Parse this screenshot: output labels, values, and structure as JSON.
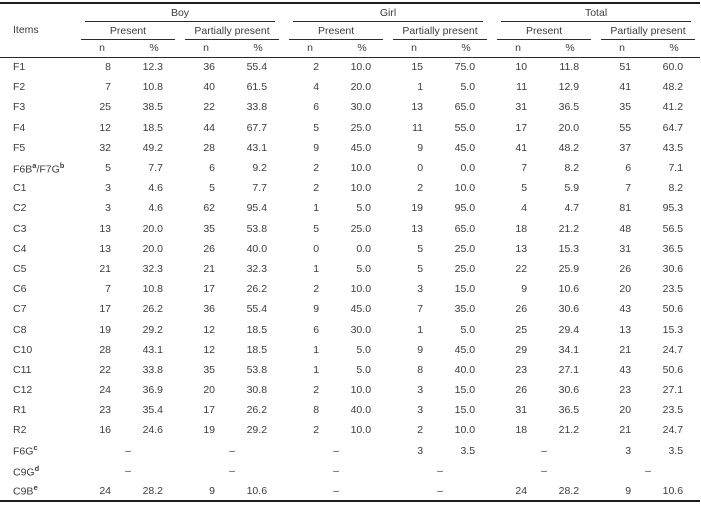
{
  "table": {
    "items_header": "Items",
    "dash": "–",
    "col_headers": [
      "n",
      "%"
    ],
    "groups": [
      {
        "label": "Boy",
        "subgroups": [
          "Present",
          "Partially present"
        ]
      },
      {
        "label": "Girl",
        "subgroups": [
          "Present",
          "Partially present"
        ]
      },
      {
        "label": "Total",
        "subgroups": [
          "Present",
          "Partially present"
        ]
      }
    ],
    "rows": [
      {
        "label": [
          [
            "t",
            "F1"
          ]
        ],
        "groups": [
          [
            "8",
            "12.3"
          ],
          [
            "36",
            "55.4"
          ],
          [
            "2",
            "10.0"
          ],
          [
            "15",
            "75.0"
          ],
          [
            "10",
            "11.8"
          ],
          [
            "51",
            "60.0"
          ]
        ]
      },
      {
        "label": [
          [
            "t",
            "F2"
          ]
        ],
        "groups": [
          [
            "7",
            "10.8"
          ],
          [
            "40",
            "61.5"
          ],
          [
            "4",
            "20.0"
          ],
          [
            "1",
            "5.0"
          ],
          [
            "11",
            "12.9"
          ],
          [
            "41",
            "48.2"
          ]
        ]
      },
      {
        "label": [
          [
            "t",
            "F3"
          ]
        ],
        "groups": [
          [
            "25",
            "38.5"
          ],
          [
            "22",
            "33.8"
          ],
          [
            "6",
            "30.0"
          ],
          [
            "13",
            "65.0"
          ],
          [
            "31",
            "36.5"
          ],
          [
            "35",
            "41.2"
          ]
        ]
      },
      {
        "label": [
          [
            "t",
            "F4"
          ]
        ],
        "groups": [
          [
            "12",
            "18.5"
          ],
          [
            "44",
            "67.7"
          ],
          [
            "5",
            "25.0"
          ],
          [
            "11",
            "55.0"
          ],
          [
            "17",
            "20.0"
          ],
          [
            "55",
            "64.7"
          ]
        ]
      },
      {
        "label": [
          [
            "t",
            "F5"
          ]
        ],
        "groups": [
          [
            "32",
            "49.2"
          ],
          [
            "28",
            "43.1"
          ],
          [
            "9",
            "45.0"
          ],
          [
            "9",
            "45.0"
          ],
          [
            "41",
            "48.2"
          ],
          [
            "37",
            "43.5"
          ]
        ]
      },
      {
        "label": [
          [
            "t",
            "F6B"
          ],
          [
            "sup",
            "a"
          ],
          [
            "t",
            "/F7G"
          ],
          [
            "sup",
            "b"
          ]
        ],
        "groups": [
          [
            "5",
            "7.7"
          ],
          [
            "6",
            "9.2"
          ],
          [
            "2",
            "10.0"
          ],
          [
            "0",
            "0.0"
          ],
          [
            "7",
            "8.2"
          ],
          [
            "6",
            "7.1"
          ]
        ]
      },
      {
        "label": [
          [
            "t",
            "C1"
          ]
        ],
        "groups": [
          [
            "3",
            "4.6"
          ],
          [
            "5",
            "7.7"
          ],
          [
            "2",
            "10.0"
          ],
          [
            "2",
            "10.0"
          ],
          [
            "5",
            "5.9"
          ],
          [
            "7",
            "8.2"
          ]
        ]
      },
      {
        "label": [
          [
            "t",
            "C2"
          ]
        ],
        "groups": [
          [
            "3",
            "4.6"
          ],
          [
            "62",
            "95.4"
          ],
          [
            "1",
            "5.0"
          ],
          [
            "19",
            "95.0"
          ],
          [
            "4",
            "4.7"
          ],
          [
            "81",
            "95.3"
          ]
        ]
      },
      {
        "label": [
          [
            "t",
            "C3"
          ]
        ],
        "groups": [
          [
            "13",
            "20.0"
          ],
          [
            "35",
            "53.8"
          ],
          [
            "5",
            "25.0"
          ],
          [
            "13",
            "65.0"
          ],
          [
            "18",
            "21.2"
          ],
          [
            "48",
            "56.5"
          ]
        ]
      },
      {
        "label": [
          [
            "t",
            "C4"
          ]
        ],
        "groups": [
          [
            "13",
            "20.0"
          ],
          [
            "26",
            "40.0"
          ],
          [
            "0",
            "0.0"
          ],
          [
            "5",
            "25.0"
          ],
          [
            "13",
            "15.3"
          ],
          [
            "31",
            "36.5"
          ]
        ]
      },
      {
        "label": [
          [
            "t",
            "C5"
          ]
        ],
        "groups": [
          [
            "21",
            "32.3"
          ],
          [
            "21",
            "32.3"
          ],
          [
            "1",
            "5.0"
          ],
          [
            "5",
            "25.0"
          ],
          [
            "22",
            "25.9"
          ],
          [
            "26",
            "30.6"
          ]
        ]
      },
      {
        "label": [
          [
            "t",
            "C6"
          ]
        ],
        "groups": [
          [
            "7",
            "10.8"
          ],
          [
            "17",
            "26.2"
          ],
          [
            "2",
            "10.0"
          ],
          [
            "3",
            "15.0"
          ],
          [
            "9",
            "10.6"
          ],
          [
            "20",
            "23.5"
          ]
        ]
      },
      {
        "label": [
          [
            "t",
            "C7"
          ]
        ],
        "groups": [
          [
            "17",
            "26.2"
          ],
          [
            "36",
            "55.4"
          ],
          [
            "9",
            "45.0"
          ],
          [
            "7",
            "35.0"
          ],
          [
            "26",
            "30.6"
          ],
          [
            "43",
            "50.6"
          ]
        ]
      },
      {
        "label": [
          [
            "t",
            "C8"
          ]
        ],
        "groups": [
          [
            "19",
            "29.2"
          ],
          [
            "12",
            "18.5"
          ],
          [
            "6",
            "30.0"
          ],
          [
            "1",
            "5.0"
          ],
          [
            "25",
            "29.4"
          ],
          [
            "13",
            "15.3"
          ]
        ]
      },
      {
        "label": [
          [
            "t",
            "C10"
          ]
        ],
        "groups": [
          [
            "28",
            "43.1"
          ],
          [
            "12",
            "18.5"
          ],
          [
            "1",
            "5.0"
          ],
          [
            "9",
            "45.0"
          ],
          [
            "29",
            "34.1"
          ],
          [
            "21",
            "24.7"
          ]
        ]
      },
      {
        "label": [
          [
            "t",
            "C11"
          ]
        ],
        "groups": [
          [
            "22",
            "33.8"
          ],
          [
            "35",
            "53.8"
          ],
          [
            "1",
            "5.0"
          ],
          [
            "8",
            "40.0"
          ],
          [
            "23",
            "27.1"
          ],
          [
            "43",
            "50.6"
          ]
        ]
      },
      {
        "label": [
          [
            "t",
            "C12"
          ]
        ],
        "groups": [
          [
            "24",
            "36.9"
          ],
          [
            "20",
            "30.8"
          ],
          [
            "2",
            "10.0"
          ],
          [
            "3",
            "15.0"
          ],
          [
            "26",
            "30.6"
          ],
          [
            "23",
            "27.1"
          ]
        ]
      },
      {
        "label": [
          [
            "t",
            "R1"
          ]
        ],
        "groups": [
          [
            "23",
            "35.4"
          ],
          [
            "17",
            "26.2"
          ],
          [
            "8",
            "40.0"
          ],
          [
            "3",
            "15.0"
          ],
          [
            "31",
            "36.5"
          ],
          [
            "20",
            "23.5"
          ]
        ]
      },
      {
        "label": [
          [
            "t",
            "R2"
          ]
        ],
        "groups": [
          [
            "16",
            "24.6"
          ],
          [
            "19",
            "29.2"
          ],
          [
            "2",
            "10.0"
          ],
          [
            "2",
            "10.0"
          ],
          [
            "18",
            "21.2"
          ],
          [
            "21",
            "24.7"
          ]
        ]
      },
      {
        "label": [
          [
            "t",
            "F6G"
          ],
          [
            "sup",
            "c"
          ]
        ],
        "groups": [
          null,
          null,
          null,
          [
            "3",
            "3.5"
          ],
          null,
          [
            "3",
            "3.5"
          ]
        ]
      },
      {
        "label": [
          [
            "t",
            "C9G"
          ],
          [
            "sup",
            "d"
          ]
        ],
        "groups": [
          null,
          null,
          null,
          null,
          null,
          null
        ]
      },
      {
        "label": [
          [
            "t",
            "C9B"
          ],
          [
            "sup",
            "e"
          ]
        ],
        "groups": [
          [
            "24",
            "28.2"
          ],
          [
            "9",
            "10.6"
          ],
          null,
          null,
          [
            "24",
            "28.2"
          ],
          [
            "9",
            "10.6"
          ]
        ]
      }
    ]
  },
  "colors": {
    "text": "#3c3c3c",
    "rule": "#1f1f1f",
    "background": "#ffffff"
  }
}
